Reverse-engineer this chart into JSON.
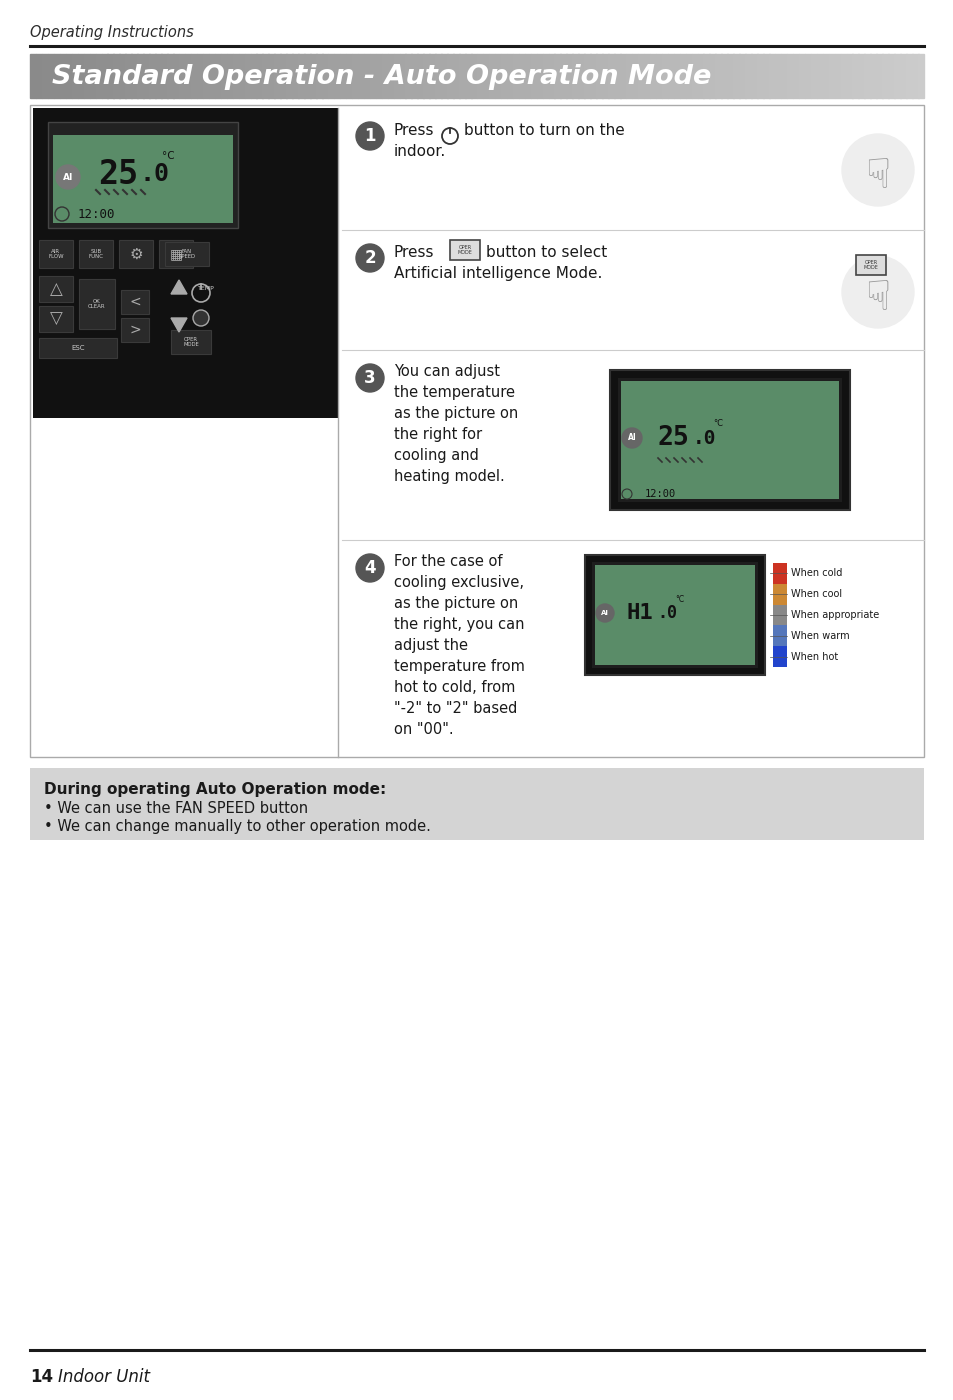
{
  "page_title": "Standard Operation - Auto Operation Mode",
  "header_text": "Operating Instructions",
  "bg_color": "#ffffff",
  "title_text_color": "#ffffff",
  "step3_text": "You can adjust\nthe temperature\nas the picture on\nthe right for\ncooling and\nheating model.",
  "step4_text": "For the case of\ncooling exclusive,\nas the picture on\nthe right, you can\nadjust the\ntemperature from\nhot to cold, from\n\"-2\" to \"2\" based\non \"00\".",
  "note_title": "During operating Auto Operation mode:",
  "note_line1": "• We can use the FAN SPEED button",
  "note_line2": "• We can change manually to other operation mode.",
  "page_number": "14",
  "footer_label": "Indoor Unit",
  "indicators": [
    "When cold",
    "When cool",
    "When appropriate",
    "When warm",
    "When hot"
  ],
  "indicator_colors": [
    "#2244cc",
    "#5577bb",
    "#888888",
    "#cc8833",
    "#cc3322"
  ]
}
